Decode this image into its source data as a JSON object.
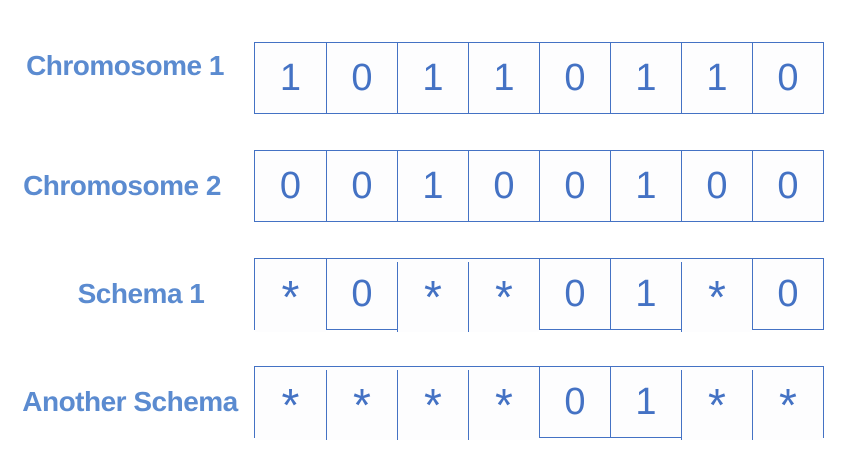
{
  "diagram": {
    "rows": [
      {
        "label": "Chromosome 1",
        "cells": [
          "1",
          "0",
          "1",
          "1",
          "0",
          "1",
          "1",
          "0"
        ]
      },
      {
        "label": "Chromosome 2",
        "cells": [
          "0",
          "0",
          "1",
          "0",
          "0",
          "1",
          "0",
          "0"
        ]
      },
      {
        "label": "Schema 1",
        "cells": [
          "*",
          "0",
          "*",
          "*",
          "0",
          "1",
          "*",
          "0"
        ]
      },
      {
        "label": "Another Schema",
        "cells": [
          "*",
          "*",
          "*",
          "*",
          "0",
          "1",
          "*",
          "*"
        ]
      }
    ],
    "colors": {
      "label_text": "#5b8bd0",
      "cell_text": "#4472c4",
      "cell_border": "#4472c4",
      "cell_background": "#fdfdfe",
      "page_background": "#ffffff"
    }
  }
}
